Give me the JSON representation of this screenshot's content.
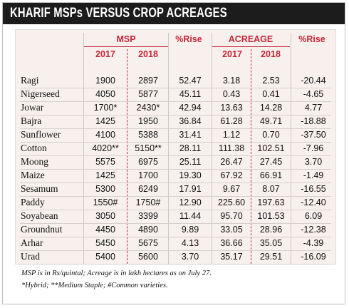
{
  "title": "KHARIF MSPs VERSUS CROP ACREAGES",
  "headers": {
    "msp": "MSP",
    "msp_rise": "%Rise",
    "acreage": "ACREAGE",
    "acreage_rise": "%Rise",
    "y2017": "2017",
    "y2018": "2018"
  },
  "rows": [
    {
      "crop": "Ragi",
      "msp2017": "1900",
      "msp2018": "2897",
      "msp_rise": "52.47",
      "acr2017": "3.18",
      "acr2018": "2.53",
      "acr_rise": "-20.44"
    },
    {
      "crop": "Nigerseed",
      "msp2017": "4050",
      "msp2018": "5877",
      "msp_rise": "45.11",
      "acr2017": "0.43",
      "acr2018": "0.41",
      "acr_rise": "-4.65"
    },
    {
      "crop": "Jowar",
      "msp2017": "1700*",
      "msp2018": "2430*",
      "msp_rise": "42.94",
      "acr2017": "13.63",
      "acr2018": "14.28",
      "acr_rise": "4.77"
    },
    {
      "crop": "Bajra",
      "msp2017": "1425",
      "msp2018": "1950",
      "msp_rise": "36.84",
      "acr2017": "61.28",
      "acr2018": "49.71",
      "acr_rise": "-18.88"
    },
    {
      "crop": "Sunflower",
      "msp2017": "4100",
      "msp2018": "5388",
      "msp_rise": "31.41",
      "acr2017": "1.12",
      "acr2018": "0.70",
      "acr_rise": "-37.50"
    },
    {
      "crop": "Cotton",
      "msp2017": "4020**",
      "msp2018": "5150**",
      "msp_rise": "28.11",
      "acr2017": "111.38",
      "acr2018": "102.51",
      "acr_rise": "-7.96"
    },
    {
      "crop": "Moong",
      "msp2017": "5575",
      "msp2018": "6975",
      "msp_rise": "25.11",
      "acr2017": "26.47",
      "acr2018": "27.45",
      "acr_rise": "3.70"
    },
    {
      "crop": "Maize",
      "msp2017": "1425",
      "msp2018": "1700",
      "msp_rise": "19.30",
      "acr2017": "67.92",
      "acr2018": "66.91",
      "acr_rise": "-1.49"
    },
    {
      "crop": "Sesamum",
      "msp2017": "5300",
      "msp2018": "6249",
      "msp_rise": "17.91",
      "acr2017": "9.67",
      "acr2018": "8.07",
      "acr_rise": "-16.55"
    },
    {
      "crop": "Paddy",
      "msp2017": "1550#",
      "msp2018": "1750#",
      "msp_rise": "12.90",
      "acr2017": "225.60",
      "acr2018": "197.63",
      "acr_rise": "-12.40"
    },
    {
      "crop": "Soyabean",
      "msp2017": "3050",
      "msp2018": "3399",
      "msp_rise": "11.44",
      "acr2017": "95.70",
      "acr2018": "101.53",
      "acr_rise": "6.09"
    },
    {
      "crop": "Groundnut",
      "msp2017": "4450",
      "msp2018": "4890",
      "msp_rise": "9.89",
      "acr2017": "33.05",
      "acr2018": "28.96",
      "acr_rise": "-12.38"
    },
    {
      "crop": "Arhar",
      "msp2017": "5450",
      "msp2018": "5675",
      "msp_rise": "4.13",
      "acr2017": "36.66",
      "acr2018": "35.05",
      "acr_rise": "-4.39"
    },
    {
      "crop": "Urad",
      "msp2017": "5400",
      "msp2018": "5600",
      "msp_rise": "3.70",
      "acr2017": "35.17",
      "acr2018": "29.51",
      "acr_rise": "-16.09"
    }
  ],
  "notes": {
    "line1": "MSP is in Rs/quintal; Acreage is in lakh hectares as on July 27.",
    "line2": "*Hybrid; **Medium Staple; #Common varieties."
  }
}
